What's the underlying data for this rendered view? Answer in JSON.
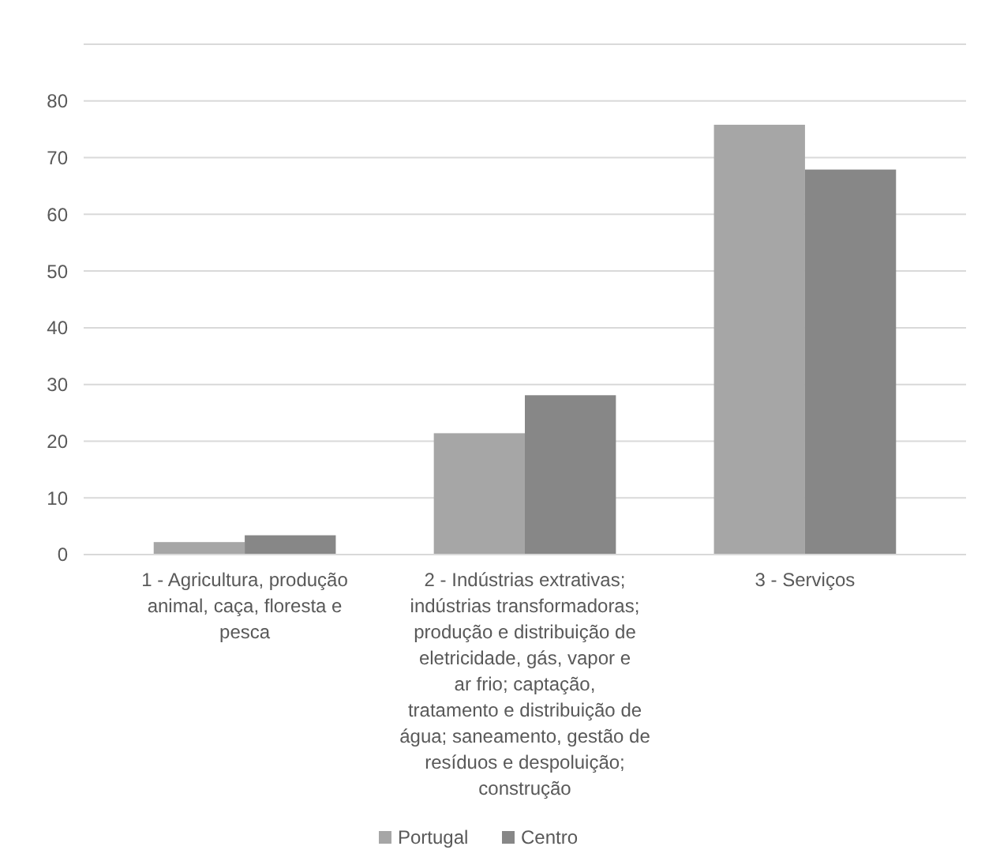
{
  "chart_data": {
    "type": "bar",
    "categories": [
      "1 - Agricultura, produção animal, caça, floresta e pesca",
      "2 - Indústrias extrativas; indústrias transformadoras; produção e distribuição de eletricidade, gás, vapor e ar frio; captação, tratamento e distribuição de água; saneamento, gestão de resíduos e despoluição; construção",
      "3 - Serviços"
    ],
    "series": [
      {
        "name": "Portugal",
        "color": "#a6a6a6",
        "values": [
          2.2,
          21.4,
          75.8
        ]
      },
      {
        "name": "Centro",
        "color": "#878787",
        "values": [
          3.4,
          28.1,
          67.9
        ]
      }
    ],
    "ylim": [
      0,
      90
    ],
    "yticks": [
      0,
      10,
      20,
      30,
      40,
      50,
      60,
      70,
      80,
      {
        "value": 90,
        "label": null
      }
    ],
    "grid": "y",
    "legend": "bottom"
  }
}
